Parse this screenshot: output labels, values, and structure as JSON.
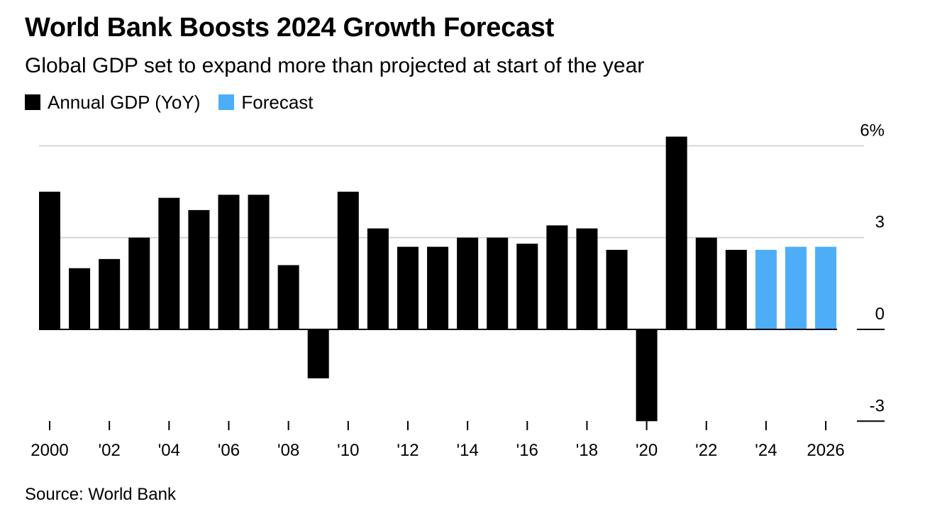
{
  "title": "World Bank Boosts 2024 Growth Forecast",
  "subtitle": "Global GDP set to expand more than projected at start of the year",
  "source": "Source: World Bank",
  "chart_data": {
    "type": "bar",
    "title": "World Bank Boosts 2024 Growth Forecast",
    "subtitle": "Global GDP set to expand more than projected at start of the year",
    "xlabel": "",
    "ylabel": "",
    "ylim": [
      -3,
      6
    ],
    "yticks": [
      {
        "value": 6,
        "label": "6%"
      },
      {
        "value": 3,
        "label": "3"
      },
      {
        "value": 0,
        "label": "0"
      },
      {
        "value": -3,
        "label": "-3"
      }
    ],
    "grid": true,
    "y_axis_position": "right",
    "legend_position": "top-left",
    "categories": [
      "2000",
      "2001",
      "2002",
      "2003",
      "2004",
      "2005",
      "2006",
      "2007",
      "2008",
      "2009",
      "2010",
      "2011",
      "2012",
      "2013",
      "2014",
      "2015",
      "2016",
      "2017",
      "2018",
      "2019",
      "2020",
      "2021",
      "2022",
      "2023",
      "2024",
      "2025",
      "2026"
    ],
    "xtick_labels": [
      "2000",
      "'02",
      "'04",
      "'06",
      "'08",
      "'10",
      "'12",
      "'14",
      "'16",
      "'18",
      "'20",
      "'22",
      "'24",
      "2026"
    ],
    "series": [
      {
        "name": "Annual GDP (YoY)",
        "color": "#000000",
        "values": [
          4.5,
          2.0,
          2.3,
          3.0,
          4.3,
          3.9,
          4.4,
          4.4,
          2.1,
          -1.6,
          4.5,
          3.3,
          2.7,
          2.7,
          3.0,
          3.0,
          2.8,
          3.4,
          3.3,
          2.6,
          -3.0,
          6.3,
          3.0,
          2.6,
          null,
          null,
          null
        ]
      },
      {
        "name": "Forecast",
        "color": "#4DAEF7",
        "values": [
          null,
          null,
          null,
          null,
          null,
          null,
          null,
          null,
          null,
          null,
          null,
          null,
          null,
          null,
          null,
          null,
          null,
          null,
          null,
          null,
          null,
          null,
          null,
          null,
          2.6,
          2.7,
          2.7
        ]
      }
    ]
  }
}
